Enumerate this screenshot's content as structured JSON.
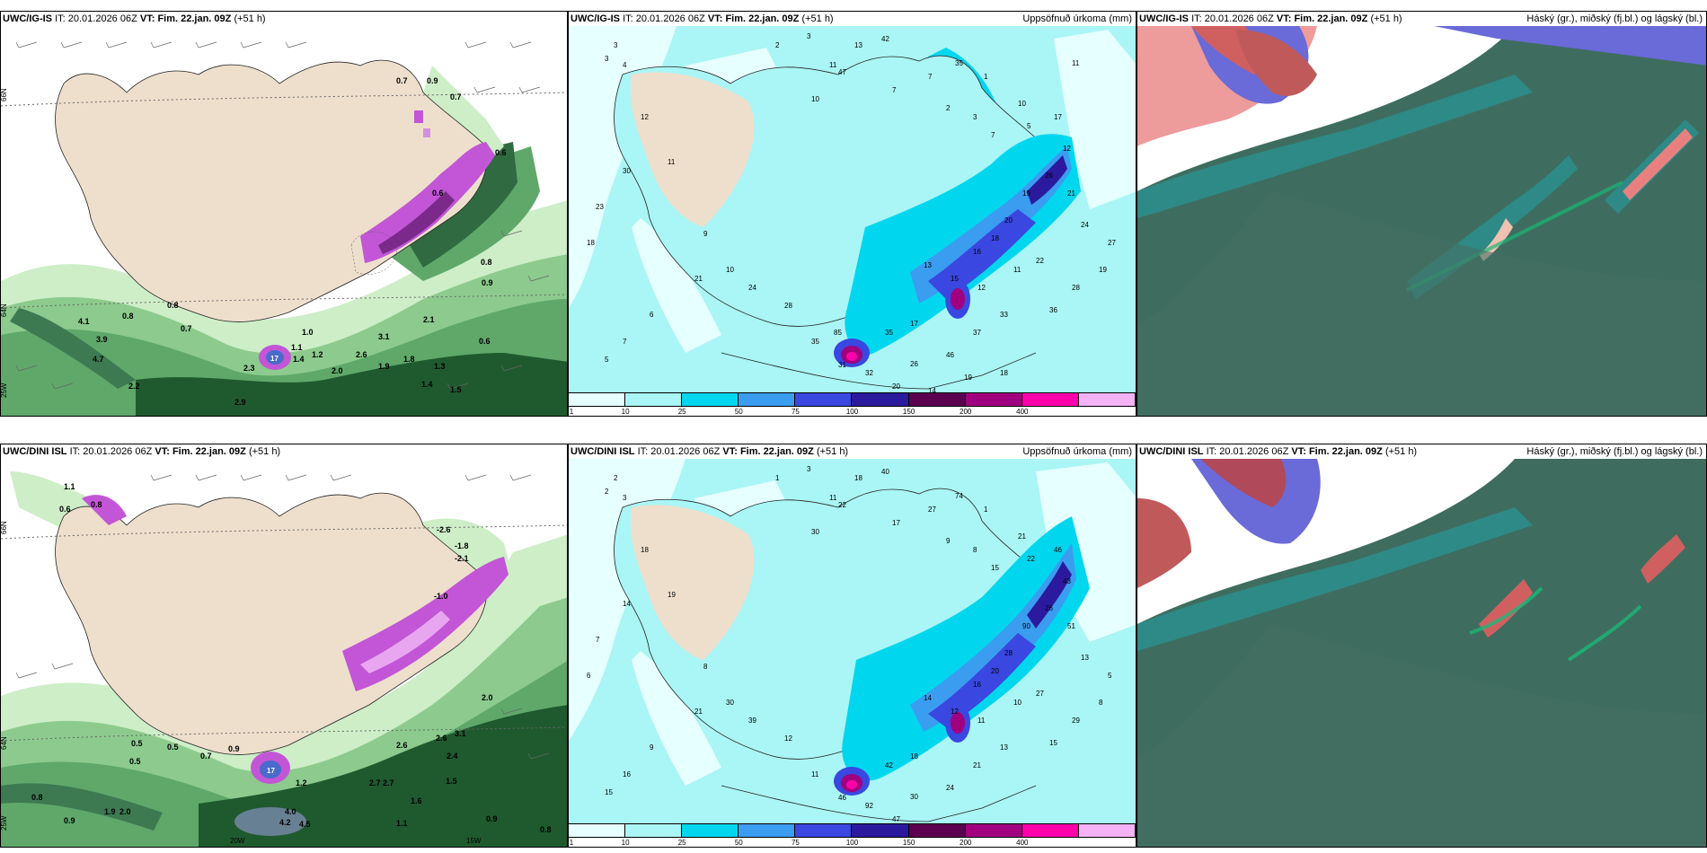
{
  "rows": [
    {
      "model": "UWC/IG-IS",
      "it_label": "IT:",
      "it_value": "20.01.2026 06Z",
      "vt_label": "VT:",
      "vt_value": "Fim. 22.jan. 09Z",
      "lead": "(+51 h)",
      "precip_labels": [
        "3",
        "4",
        "3",
        "2",
        "3",
        "11",
        "13",
        "42",
        "47",
        "7",
        "10",
        "7",
        "35",
        "1",
        "2",
        "3",
        "7",
        "10",
        "5",
        "17",
        "12",
        "26",
        "21",
        "19",
        "20",
        "18",
        "16",
        "13",
        "15",
        "12",
        "11",
        "22",
        "17",
        "35",
        "26",
        "46",
        "37",
        "33",
        "36",
        "28",
        "19",
        "27",
        "24",
        "21",
        "6",
        "7",
        "5",
        "18",
        "23",
        "30",
        "12",
        "11",
        "9",
        "10",
        "24",
        "28",
        "35",
        "31",
        "32",
        "20",
        "14",
        "19",
        "18",
        "85",
        "11"
      ],
      "surface_labels": [
        "0.7",
        "0.9",
        "0.7",
        "0.6",
        "0.6",
        "0.8",
        "0.8",
        "0.9",
        "1.0",
        "1.1",
        "1.2",
        "1.4",
        "3.1",
        "2.1",
        "2.6",
        "2.0",
        "1.9",
        "1.8",
        "1.3",
        "1.4",
        "0.6",
        "1.5",
        "2.3",
        "2.9",
        "4.1",
        "3.9",
        "4.7",
        "2.2",
        "0.7",
        "0.8",
        "17"
      ]
    },
    {
      "model": "UWC/DINI ISL",
      "it_label": "IT:",
      "it_value": "20.01.2026 06Z",
      "vt_label": "VT:",
      "vt_value": "Fim. 22.jan. 09Z",
      "lead": "(+51 h)",
      "precip_labels": [
        "2",
        "3",
        "2",
        "1",
        "3",
        "11",
        "18",
        "40",
        "22",
        "17",
        "30",
        "27",
        "74",
        "1",
        "9",
        "8",
        "15",
        "21",
        "22",
        "46",
        "43",
        "26",
        "51",
        "90",
        "28",
        "20",
        "16",
        "14",
        "12",
        "11",
        "10",
        "27",
        "18",
        "42",
        "30",
        "24",
        "21",
        "13",
        "15",
        "29",
        "8",
        "5",
        "13",
        "21",
        "9",
        "16",
        "15",
        "6",
        "7",
        "14",
        "18",
        "19",
        "8",
        "30",
        "39",
        "12",
        "11",
        "46",
        "92",
        "47"
      ],
      "surface_labels": [
        "-2.6",
        "-1.8",
        "-2.1",
        "-1.0",
        "0.5",
        "0.6",
        "0.8",
        "0.9",
        "1.1",
        "1.2",
        "0.5",
        "0.5",
        "0.7",
        "2.6",
        "2.4",
        "3.1",
        "2.6",
        "2.0",
        "1.5",
        "2.7",
        "2.7",
        "4.0",
        "4.2",
        "4.5",
        "1.9",
        "2.0",
        "0.8",
        "0.9",
        "1.6",
        "1.1",
        "0.9",
        "0.8",
        "17"
      ]
    }
  ],
  "precip": {
    "title": "Uppsöfnuð úrkoma (mm)",
    "legend_ticks": [
      "1",
      "10",
      "25",
      "50",
      "75",
      "100",
      "150",
      "200",
      "400"
    ],
    "legend_colors": [
      "#e6ffff",
      "#aaf5f5",
      "#00d7ef",
      "#3a9df0",
      "#3a47e0",
      "#2b1a9e",
      "#5c0050",
      "#a0007f",
      "#ff00aa",
      "#f5b2f5"
    ]
  },
  "cloud": {
    "title": "Háský (gr.), miðský (fj.bl.) og lágský (bl.)"
  },
  "axis_labels": {
    "row1_lat_top": "66N",
    "row1_lat_mid": "64N",
    "row1_lon": "25W",
    "row1_lat_right_top": "66N",
    "row1_lat_right_mid": "64N",
    "row2_lat_top": "66N",
    "row2_lat_mid": "64N",
    "row2_lon_left": "25W",
    "row2_lon_mid": "20W",
    "row2_lon_right": "15W",
    "row2_lat_right": "66N"
  },
  "colors": {
    "land": "#eedfcc",
    "sea_precip": "#aaf5f5",
    "green_dark": "#1f5a2e",
    "green_mid": "#5fa86a",
    "green_light": "#cdeec7",
    "magenta": "#c256d6",
    "cloud_base": "#3e6d5f",
    "cloud_light": "#2e8a86",
    "cloud_red": "#d06060",
    "cloud_blue": "#6a6ad8"
  }
}
